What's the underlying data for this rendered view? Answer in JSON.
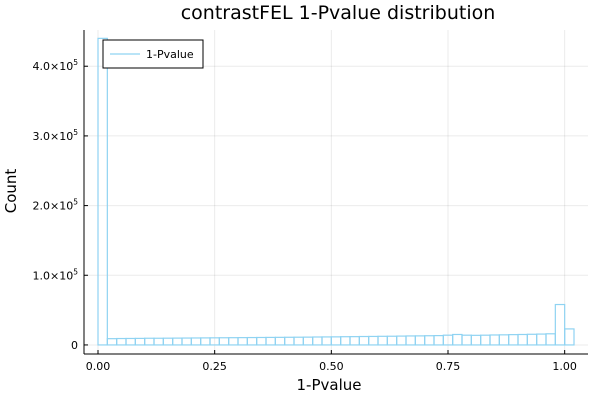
{
  "chart_data": {
    "type": "histogram",
    "title": "contrastFEL 1-Pvalue distribution",
    "xlabel": "1-Pvalue",
    "ylabel": "Count",
    "xlim": [
      -0.03,
      1.05
    ],
    "ylim": [
      -13000,
      452000
    ],
    "xticks": [
      {
        "value": 0.0,
        "label": "0.00"
      },
      {
        "value": 0.25,
        "label": "0.25"
      },
      {
        "value": 0.5,
        "label": "0.50"
      },
      {
        "value": 0.75,
        "label": "0.75"
      },
      {
        "value": 1.0,
        "label": "1.00"
      }
    ],
    "yticks": [
      {
        "value": 0,
        "base": "0",
        "exp": ""
      },
      {
        "value": 100000,
        "base": "1.0×10",
        "exp": "5"
      },
      {
        "value": 200000,
        "base": "2.0×10",
        "exp": "5"
      },
      {
        "value": 300000,
        "base": "3.0×10",
        "exp": "5"
      },
      {
        "value": 400000,
        "base": "4.0×10",
        "exp": "5"
      }
    ],
    "grid": true,
    "legend_position": "top-left",
    "series": [
      {
        "name": "1-Pvalue",
        "color": "#8fd3f2",
        "bin_edges": [
          0.0,
          0.02,
          0.04,
          0.06,
          0.08,
          0.1,
          0.12,
          0.14,
          0.16,
          0.18,
          0.2,
          0.22,
          0.24,
          0.26,
          0.28,
          0.3,
          0.32,
          0.34,
          0.36,
          0.38,
          0.4,
          0.42,
          0.44,
          0.46,
          0.48,
          0.5,
          0.52,
          0.54,
          0.56,
          0.58,
          0.6,
          0.62,
          0.64,
          0.66,
          0.68,
          0.7,
          0.72,
          0.74,
          0.76,
          0.78,
          0.8,
          0.82,
          0.84,
          0.86,
          0.88,
          0.9,
          0.92,
          0.94,
          0.96,
          0.98,
          1.0,
          1.02
        ],
        "counts": [
          440000,
          9000,
          9200,
          9300,
          9400,
          9600,
          9600,
          9700,
          9800,
          9900,
          10000,
          10100,
          10200,
          10300,
          10400,
          10500,
          10600,
          10700,
          10800,
          10900,
          11000,
          11100,
          11200,
          11400,
          11500,
          11600,
          11800,
          11900,
          12100,
          12200,
          12400,
          12500,
          12700,
          12900,
          13000,
          13200,
          13400,
          14000,
          15000,
          14000,
          13800,
          14000,
          14300,
          14500,
          14800,
          15000,
          15300,
          15600,
          16000,
          58000,
          23000
        ]
      }
    ]
  }
}
